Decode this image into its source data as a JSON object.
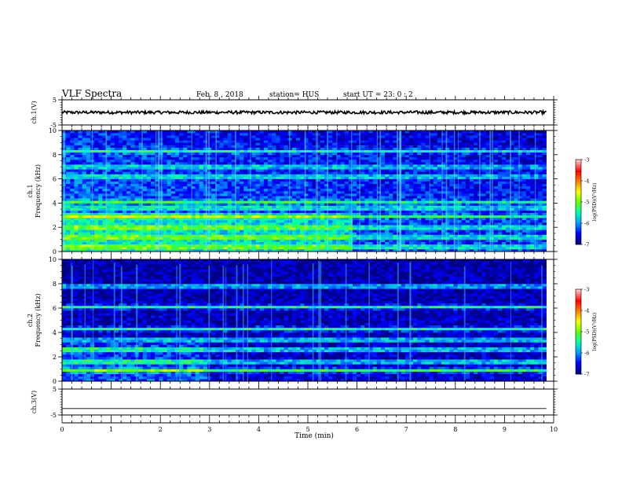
{
  "header": {
    "title": "VLF Spectra",
    "date": "Feb. 8 , 2018",
    "station": "station= HUS",
    "start": "start UT = 23: 0 : 2"
  },
  "chart_data": [
    {
      "type": "line",
      "panel": "ch1-waveform",
      "ylabel": "ch.1(V)",
      "ylim": [
        -5,
        5
      ],
      "yticks": [
        "5",
        "-5"
      ],
      "xlim": [
        0,
        10
      ],
      "baseline": 0.0,
      "noise_amplitude_v": 0.6,
      "end_minute": 9.85
    },
    {
      "type": "heatmap",
      "panel": "ch1-spectrogram",
      "ylabel": "ch.1\nFrequency (kHz)",
      "ylim": [
        0,
        10
      ],
      "yticks": [
        "0",
        "2",
        "4",
        "6",
        "8",
        "10"
      ],
      "xlim": [
        0,
        10
      ],
      "end_minute": 9.85,
      "colorbar": {
        "label": "log(PSD)(V²/Hz)",
        "range": [
          -7,
          -3
        ],
        "ticks": [
          "-3",
          "-4",
          "-5",
          "-6",
          "-7"
        ]
      }
    },
    {
      "type": "heatmap",
      "panel": "ch2-spectrogram",
      "ylabel": "ch.2\nFrequency (kHz)",
      "ylim": [
        0,
        10
      ],
      "yticks": [
        "0",
        "2",
        "4",
        "6",
        "8",
        "10"
      ],
      "xlim": [
        0,
        10
      ],
      "end_minute": 9.85,
      "colorbar": {
        "label": "log(PSD)(V²/Hz)",
        "range": [
          -7,
          -3
        ],
        "ticks": [
          "-3",
          "-4",
          "-5",
          "-6",
          "-7"
        ]
      }
    },
    {
      "type": "line",
      "panel": "ch3-waveform",
      "ylabel": "ch.3(V)",
      "ylim": [
        -5,
        5
      ],
      "yticks": [
        "5",
        "-5"
      ],
      "xlim": [
        0,
        10
      ],
      "baseline": -2.5,
      "noise_amplitude_v": 0.0,
      "end_minute": 9.85
    }
  ],
  "xaxis": {
    "label": "Time (min)",
    "ticks": [
      "0",
      "1",
      "2",
      "3",
      "4",
      "5",
      "6",
      "7",
      "8",
      "9",
      "10"
    ]
  },
  "colors": {
    "spectrogram_background": "#000066",
    "colormap": [
      "#000080",
      "#0000ff",
      "#00a0ff",
      "#00ffb0",
      "#60ff00",
      "#ffff00",
      "#ff8000",
      "#ff0000",
      "#ffc0c0"
    ]
  }
}
